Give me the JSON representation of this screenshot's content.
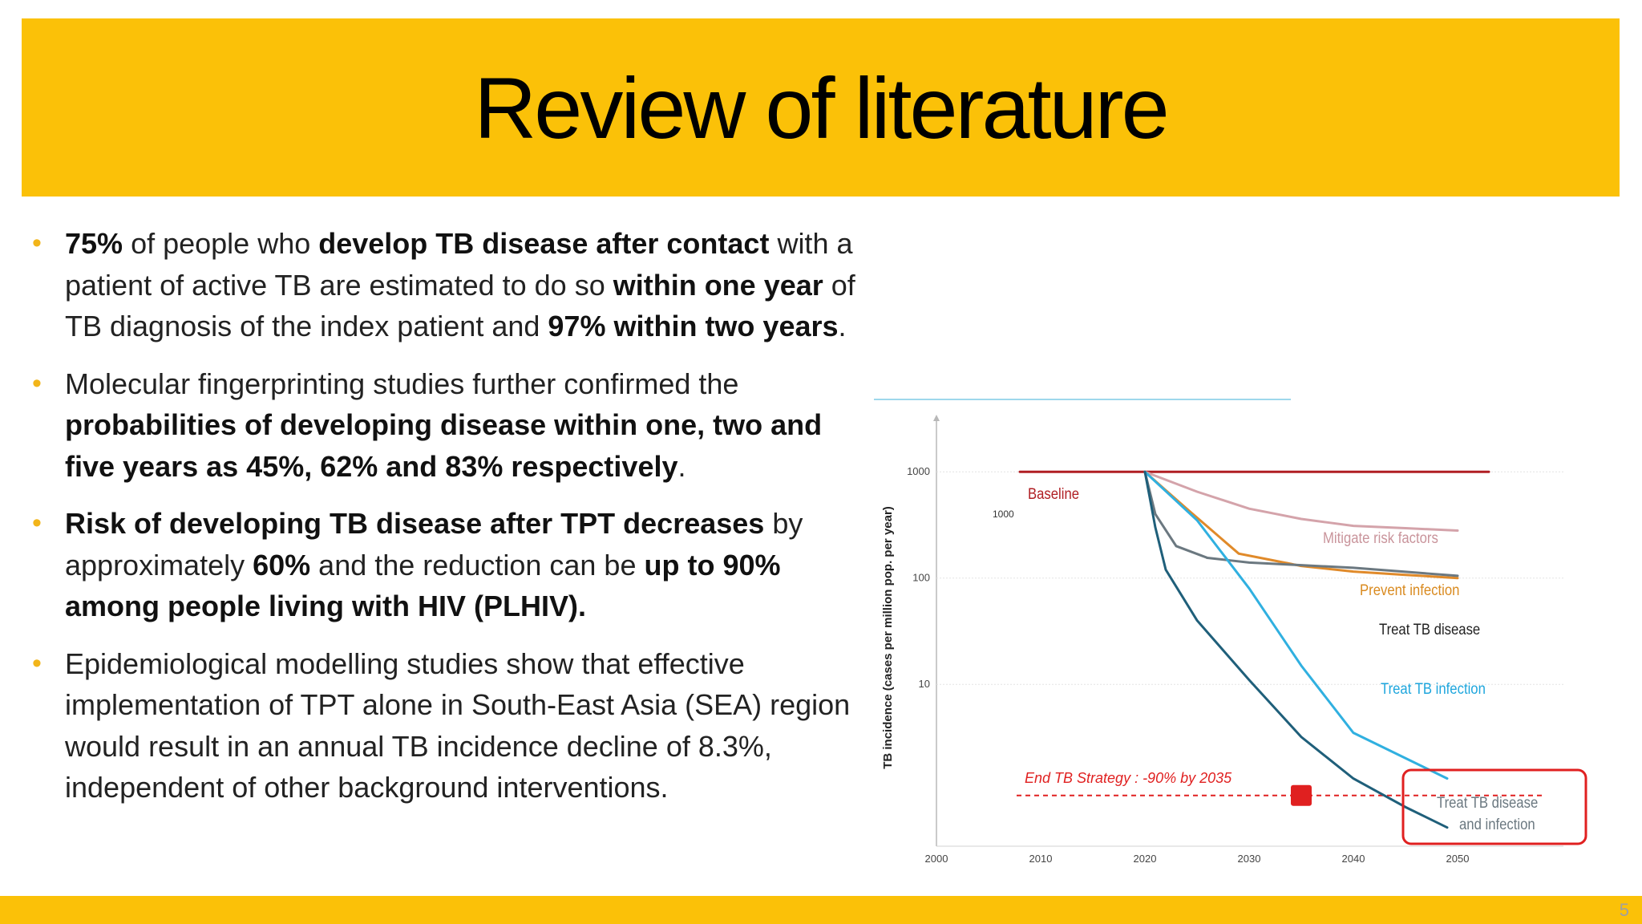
{
  "slide": {
    "title": "Review of literature",
    "page_number": "5",
    "colors": {
      "accent": "#fbc108",
      "bullet": "#f2b51a"
    }
  },
  "bullets": [
    {
      "segments": [
        {
          "text": "75%",
          "bold": true
        },
        {
          "text": " of people who ",
          "bold": false
        },
        {
          "text": "develop TB disease after contact",
          "bold": true
        },
        {
          "text": " with a patient of active TB are estimated to do so ",
          "bold": false
        },
        {
          "text": "within one year",
          "bold": true
        },
        {
          "text": " of TB diagnosis of the index patient and ",
          "bold": false
        },
        {
          "text": "97% within two years",
          "bold": true
        },
        {
          "text": ".",
          "bold": false
        }
      ]
    },
    {
      "segments": [
        {
          "text": "Molecular fingerprinting studies further confirmed the ",
          "bold": false
        },
        {
          "text": "probabilities of developing disease within one, two and five years as 45%, 62% and 83% respectively",
          "bold": true
        },
        {
          "text": ".",
          "bold": false
        }
      ]
    },
    {
      "segments": [
        {
          "text": "Risk of developing TB disease after TPT decreases",
          "bold": true
        },
        {
          "text": " by approximately ",
          "bold": false
        },
        {
          "text": "60%",
          "bold": true
        },
        {
          "text": " and the reduction can be ",
          "bold": false
        },
        {
          "text": "up to 90% among people living with HIV (PLHIV).",
          "bold": true
        }
      ]
    },
    {
      "segments": [
        {
          "text": "Epidemiological modelling studies show that effective implementation of TPT alone in South-East Asia (SEA) region would result in an annual TB incidence decline of 8.3%, independent of other background interventions.",
          "bold": false
        }
      ]
    }
  ],
  "chart_data": {
    "type": "line",
    "title": "",
    "xlabel": "",
    "ylabel": "TB incidence (cases per million pop. per year)",
    "x_ticks": [
      "2000",
      "2010",
      "2020",
      "2030",
      "2040",
      "2050"
    ],
    "y_ticks": [
      "1000",
      "100",
      "10"
    ],
    "y_scale": "log",
    "xlim": [
      2000,
      2050
    ],
    "ylim": [
      0.3,
      3000
    ],
    "target": {
      "label": "End TB Strategy : -90% by 2035",
      "year": 2035,
      "value": 0.9,
      "color": "#e02020"
    },
    "series": [
      {
        "name": "Baseline",
        "color": "#b01e23",
        "points": [
          [
            2008,
            1000
          ],
          [
            2020,
            1000
          ],
          [
            2030,
            1000
          ],
          [
            2040,
            1000
          ],
          [
            2053,
            1000
          ]
        ]
      },
      {
        "name": "Mitigate risk factors",
        "color": "#d4a3aa",
        "points": [
          [
            2020,
            1000
          ],
          [
            2025,
            650
          ],
          [
            2030,
            450
          ],
          [
            2035,
            360
          ],
          [
            2040,
            310
          ],
          [
            2050,
            280
          ]
        ]
      },
      {
        "name": "Prevent infection",
        "color": "#e08a2a",
        "points": [
          [
            2020,
            1000
          ],
          [
            2024,
            450
          ],
          [
            2029,
            170
          ],
          [
            2035,
            130
          ],
          [
            2040,
            115
          ],
          [
            2050,
            100
          ]
        ]
      },
      {
        "name": "Treat TB disease",
        "color": "#6b7880",
        "points": [
          [
            2020,
            1000
          ],
          [
            2021,
            400
          ],
          [
            2023,
            200
          ],
          [
            2026,
            155
          ],
          [
            2030,
            140
          ],
          [
            2040,
            125
          ],
          [
            2050,
            105
          ]
        ]
      },
      {
        "name": "Treat TB infection",
        "color": "#30b0e0",
        "points": [
          [
            2020,
            1000
          ],
          [
            2025,
            350
          ],
          [
            2030,
            80
          ],
          [
            2035,
            15
          ],
          [
            2040,
            3.5
          ],
          [
            2049,
            1.3
          ]
        ]
      },
      {
        "name": "Treat TB disease and infection",
        "color": "#1f5f7a",
        "points": [
          [
            2020,
            1000
          ],
          [
            2021,
            300
          ],
          [
            2022,
            120
          ],
          [
            2025,
            40
          ],
          [
            2030,
            11
          ],
          [
            2035,
            3.2
          ],
          [
            2040,
            1.3
          ],
          [
            2045,
            0.7
          ],
          [
            2049,
            0.45
          ]
        ]
      }
    ],
    "series_labels": [
      "Baseline",
      "Mitigate risk factors",
      "Prevent infection",
      "Treat TB disease",
      "Treat TB infection",
      "Treat TB disease",
      "and infection"
    ],
    "grid": true
  }
}
